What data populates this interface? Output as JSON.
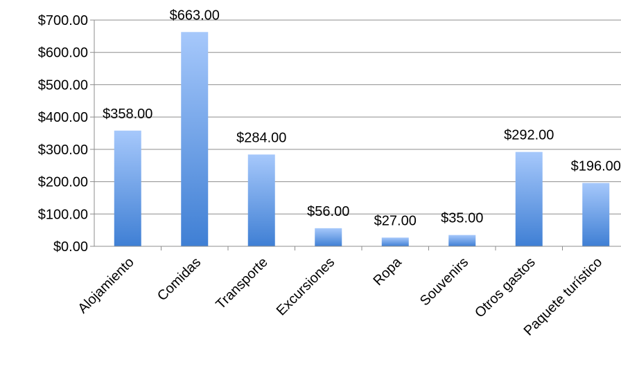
{
  "chart_data": {
    "type": "bar",
    "categories": [
      "Alojamiento",
      "Comidas",
      "Transporte",
      "Excursiones",
      "Ropa",
      "Souvenirs",
      "Otros gastos",
      "Paquete turístico"
    ],
    "values": [
      358,
      663,
      284,
      56,
      27,
      35,
      292,
      196
    ],
    "data_labels": [
      "$358.00",
      "$663.00",
      "$284.00",
      "$56.00",
      "$27.00",
      "$35.00",
      "$292.00",
      "$196.00"
    ],
    "y_ticks": [
      0,
      100,
      200,
      300,
      400,
      500,
      600,
      700
    ],
    "y_tick_labels": [
      "$0.00",
      "$100.00",
      "$200.00",
      "$300.00",
      "$400.00",
      "$500.00",
      "$600.00",
      "$700.00"
    ],
    "ylim": [
      0,
      700
    ],
    "grid": true,
    "legend": "none",
    "colors": {
      "bar_top": "#a6c8fb",
      "bar_bottom": "#3f7fd4",
      "grid": "#8c8c8c",
      "axis": "#8c8c8c"
    }
  }
}
